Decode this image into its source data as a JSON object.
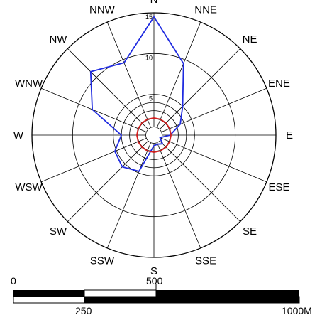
{
  "chart_data": {
    "type": "radar",
    "directions": [
      "N",
      "NNE",
      "NE",
      "ENE",
      "E",
      "ESE",
      "SE",
      "SSE",
      "S",
      "SSW",
      "SW",
      "WSW",
      "W",
      "WNW",
      "NW",
      "NNW"
    ],
    "rlim": [
      0,
      15
    ],
    "radial_ticks": [
      "5",
      "10",
      "15"
    ],
    "series": [
      {
        "color": "#1f2be0",
        "values": [
          14.5,
          9.5,
          5.0,
          3.5,
          2.0,
          0.8,
          1.5,
          1.2,
          1.3,
          4.8,
          5.5,
          5.2,
          4.0,
          8.2,
          11.0,
          9.6
        ]
      },
      {
        "color": "#d42020",
        "values": [
          2.1,
          2.1,
          2.1,
          2.1,
          2.1,
          2.1,
          2.1,
          2.1,
          2.1,
          2.1,
          2.1,
          2.1,
          2.1,
          2.1,
          2.1,
          2.1
        ]
      }
    ],
    "grid": true
  },
  "scale_bar": {
    "labels_top": [
      "0",
      "500"
    ],
    "labels_bottom": [
      "250",
      "1000M"
    ]
  }
}
